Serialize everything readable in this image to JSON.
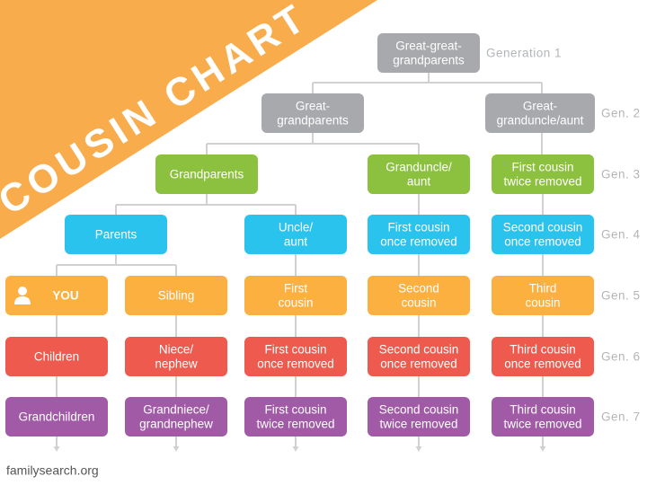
{
  "title": "COUSIN CHART",
  "source": "familysearch.org",
  "generations": [
    "Generation 1",
    "Gen. 2",
    "Gen. 3",
    "Gen. 4",
    "Gen. 5",
    "Gen. 6",
    "Gen. 7"
  ],
  "nodes": [
    {
      "label": [
        "Great-great-",
        "grandparents"
      ]
    },
    {
      "label": [
        "Great-",
        "grandparents"
      ]
    },
    {
      "label": [
        "Great-",
        "granduncle/aunt"
      ]
    },
    {
      "label": [
        "Grandparents"
      ]
    },
    {
      "label": [
        "Granduncle/",
        "aunt"
      ]
    },
    {
      "label": [
        "First cousin",
        "twice removed"
      ]
    },
    {
      "label": [
        "Parents"
      ]
    },
    {
      "label": [
        "Uncle/",
        "aunt"
      ]
    },
    {
      "label": [
        "First cousin",
        "once removed"
      ]
    },
    {
      "label": [
        "Second cousin",
        "once removed"
      ]
    },
    {
      "label": [
        "YOU"
      ]
    },
    {
      "label": [
        "Sibling"
      ]
    },
    {
      "label": [
        "First",
        "cousin"
      ]
    },
    {
      "label": [
        "Second",
        "cousin"
      ]
    },
    {
      "label": [
        "Third",
        "cousin"
      ]
    },
    {
      "label": [
        "Children"
      ]
    },
    {
      "label": [
        "Niece/",
        "nephew"
      ]
    },
    {
      "label": [
        "First cousin",
        "once removed"
      ]
    },
    {
      "label": [
        "Second cousin",
        "once removed"
      ]
    },
    {
      "label": [
        "Third cousin",
        "once removed"
      ]
    },
    {
      "label": [
        "Grandchildren"
      ]
    },
    {
      "label": [
        "Grandniece/",
        "grandnephew"
      ]
    },
    {
      "label": [
        "First cousin",
        "twice removed"
      ]
    },
    {
      "label": [
        "Second cousin",
        "twice removed"
      ]
    },
    {
      "label": [
        "Third cousin",
        "twice removed"
      ]
    }
  ]
}
